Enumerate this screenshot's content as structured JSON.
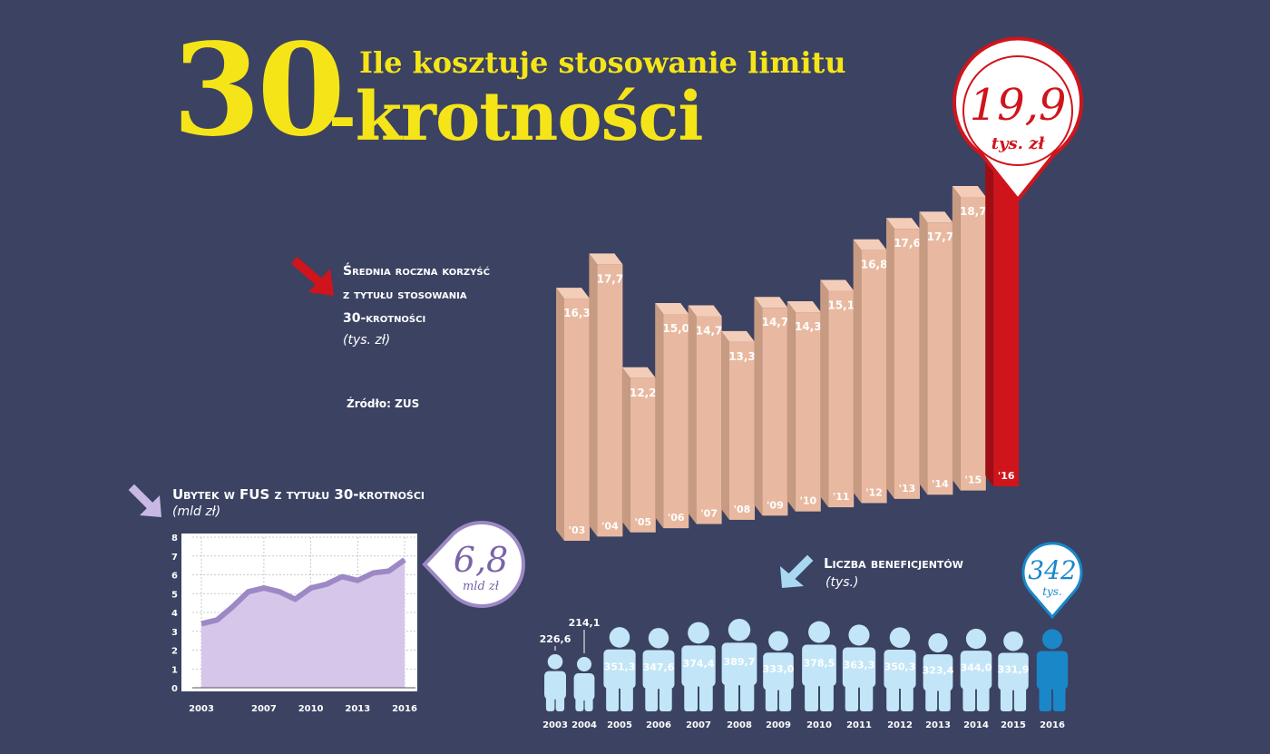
{
  "header": {
    "big_number": "30",
    "title_line1": "Ile kosztuje stosowanie limitu",
    "title_line2": "-krotności"
  },
  "callouts": {
    "main_value": "19,9",
    "main_unit": "tys. zł",
    "loss_value": "6,8",
    "loss_unit": "mld zł",
    "ben_value": "342",
    "ben_unit": "tys."
  },
  "legend": {
    "line1": "Średnia roczna korzyść",
    "line2": "z tytułu stosowania",
    "line3": "30-krotności",
    "unit": "(tys. zł)",
    "source": "Źródło: ZUS"
  },
  "loss_chart_text": {
    "title": "Ubytek w FUS z tytułu 30-krotności",
    "unit": "(mld zł)"
  },
  "ben_chart_text": {
    "title": "Liczba beneficjentów",
    "unit": "(tys.)"
  },
  "colors": {
    "background": "#3b4262",
    "title": "#f5e518",
    "bar_face": "#e8b9a0",
    "bar_top": "#f3cdb8",
    "bar_side": "#c79a82",
    "highlight_red": "#d0141c",
    "line_fill": "#d6c6ea",
    "line_stroke": "#9c88c4",
    "person": "#c2e6f7",
    "person_highlight": "#1a87c9"
  },
  "chart_data": [
    {
      "type": "bar",
      "categories": [
        "'03",
        "'04",
        "'05",
        "'06",
        "'07",
        "'08",
        "'09",
        "'10",
        "'11",
        "'12",
        "'13",
        "'14",
        "'15",
        "'16"
      ],
      "values": [
        16.3,
        17.7,
        12.2,
        15.0,
        14.7,
        13.3,
        14.7,
        14.3,
        15.1,
        16.8,
        17.6,
        17.7,
        18.7,
        19.9
      ],
      "labels": [
        "16,3",
        "17,7",
        "12,2",
        "15,0",
        "14,7",
        "13,3",
        "14,7",
        "14,3",
        "15,1",
        "16,8",
        "17,6",
        "17,7",
        "18,7",
        ""
      ],
      "title": "Średnia roczna korzyść z tytułu stosowania 30-krotności",
      "ylabel": "(tys. zł)"
    },
    {
      "type": "area",
      "x": [
        2003,
        2004,
        2005,
        2006,
        2007,
        2008,
        2009,
        2010,
        2011,
        2012,
        2013,
        2014,
        2015,
        2016
      ],
      "values": [
        3.4,
        3.6,
        4.3,
        5.1,
        5.3,
        5.1,
        4.7,
        5.3,
        5.5,
        5.9,
        5.7,
        6.1,
        6.2,
        6.8
      ],
      "xticks": [
        "2003",
        "2007",
        "2010",
        "2013",
        "2016"
      ],
      "yticks": [
        "0",
        "1",
        "2",
        "3",
        "4",
        "5",
        "6",
        "7",
        "8"
      ],
      "ylim": [
        0,
        8
      ],
      "title": "Ubytek w FUS z tytułu 30-krotności",
      "ylabel": "(mld zł)"
    },
    {
      "type": "bar",
      "categories": [
        "2003",
        "2004",
        "2005",
        "2006",
        "2007",
        "2008",
        "2009",
        "2010",
        "2011",
        "2012",
        "2013",
        "2014",
        "2015",
        "2016"
      ],
      "values": [
        226.6,
        214.1,
        351.3,
        347.6,
        374.4,
        389.7,
        333.0,
        378.5,
        363.3,
        350.3,
        323.4,
        344.0,
        331.9,
        342
      ],
      "labels": [
        "226,6",
        "214,1",
        "351,3",
        "347,6",
        "374,4",
        "389,7",
        "333,0",
        "378,5",
        "363,3",
        "350,3",
        "323,4",
        "344,0",
        "331,9",
        ""
      ],
      "title": "Liczba beneficjentów",
      "ylabel": "(tys.)"
    }
  ]
}
